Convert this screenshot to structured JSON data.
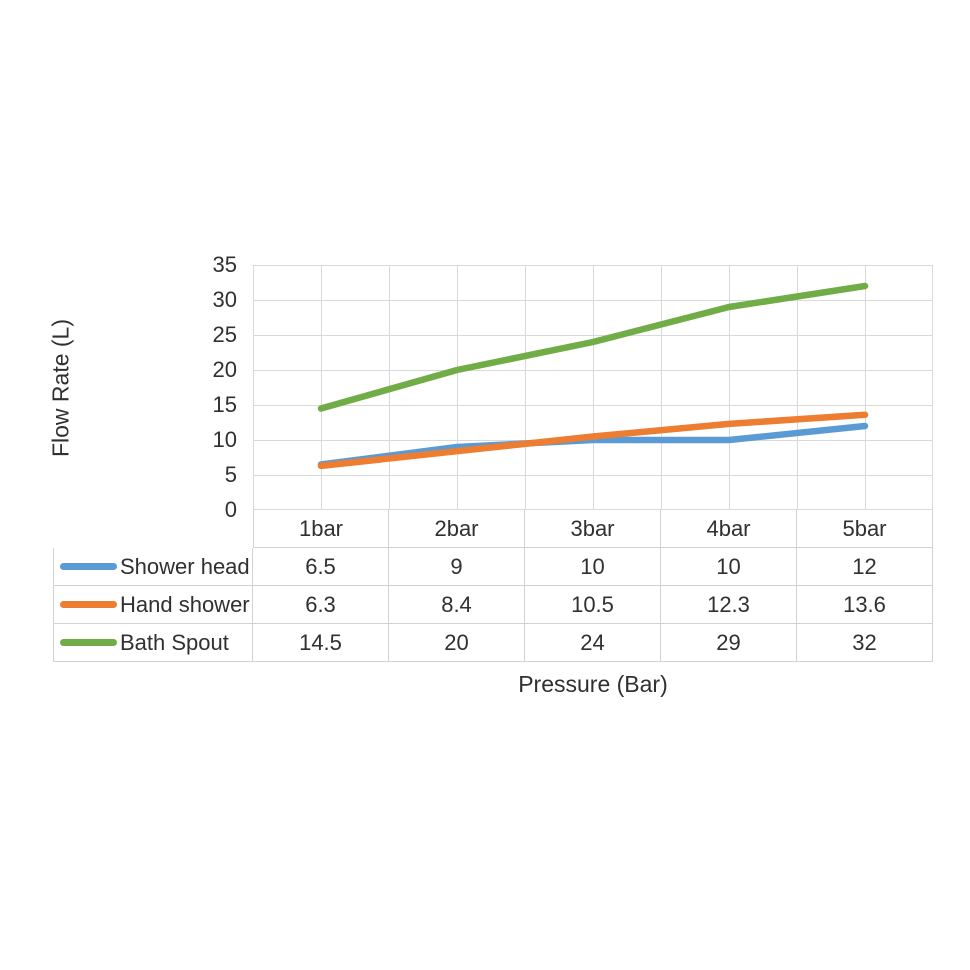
{
  "chart_data": {
    "type": "line",
    "title": "",
    "xlabel": "Pressure (Bar)",
    "ylabel": "Flow Rate (L)",
    "categories": [
      "1bar",
      "2bar",
      "3bar",
      "4bar",
      "5bar"
    ],
    "series": [
      {
        "name": "Shower head",
        "color": "#5B9BD5",
        "values": [
          6.5,
          9,
          10,
          10,
          12
        ]
      },
      {
        "name": "Hand shower",
        "color": "#ED7D31",
        "values": [
          6.3,
          8.4,
          10.5,
          12.3,
          13.6
        ]
      },
      {
        "name": "Bath Spout",
        "color": "#70AD47",
        "values": [
          14.5,
          20,
          24,
          29,
          32
        ]
      }
    ],
    "ylim": [
      0,
      35
    ],
    "yticks": [
      0,
      5,
      10,
      15,
      20,
      25,
      30,
      35
    ],
    "grid": true,
    "x_minor_gridlines": true,
    "legend_position": "data-table-left",
    "gridline_color": "#d9d9d9",
    "table_border_color": "#d2d2d2"
  }
}
